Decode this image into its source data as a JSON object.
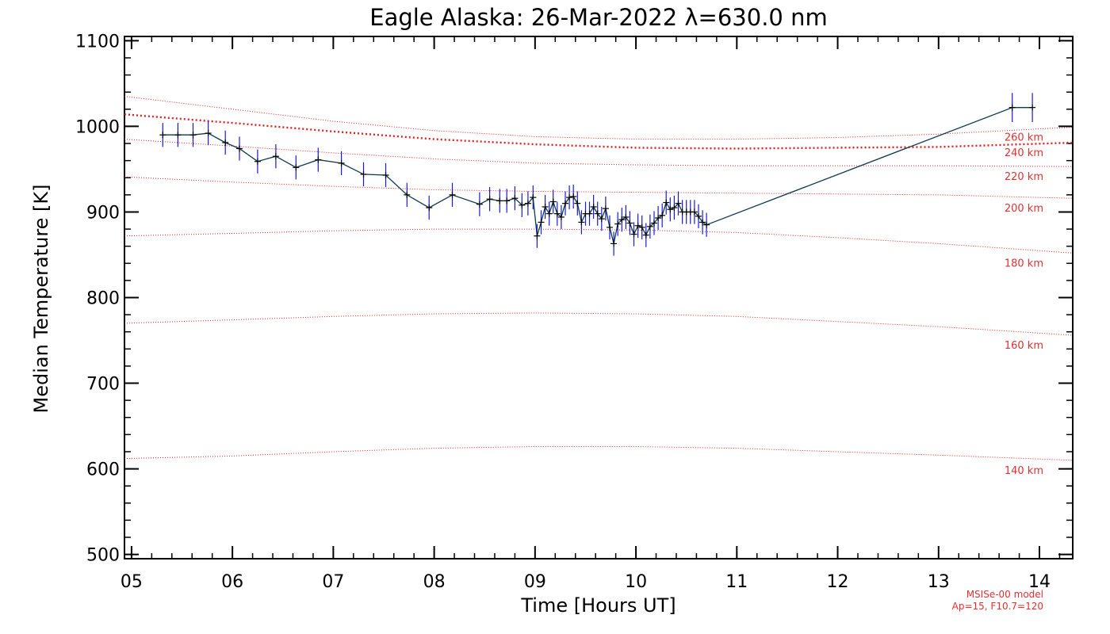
{
  "chart_data": {
    "type": "line",
    "title": "Eagle Alaska: 26-Mar-2022 λ=630.0 nm",
    "xlabel": "Time [Hours UT]",
    "ylabel": "Median Temperature [K]",
    "xlim": [
      4.93,
      14.33
    ],
    "ylim": [
      495,
      1105
    ],
    "x_ticks": [
      5,
      6,
      7,
      8,
      9,
      10,
      11,
      12,
      13,
      14
    ],
    "x_tick_labels": [
      "05",
      "06",
      "07",
      "08",
      "09",
      "10",
      "11",
      "12",
      "13",
      "14"
    ],
    "y_ticks": [
      500,
      600,
      700,
      800,
      900,
      1000,
      1100
    ],
    "y_tick_labels": [
      "500",
      "600",
      "700",
      "800",
      "900",
      "1000",
      "1100"
    ],
    "grid": false,
    "series": [
      {
        "color": "#0d3a4d",
        "marker": "+",
        "error_bar_color": "#1a1ad8",
        "x": [
          5.31,
          5.46,
          5.61,
          5.76,
          5.93,
          6.07,
          6.25,
          6.43,
          6.63,
          6.85,
          7.08,
          7.3,
          7.52,
          7.73,
          7.95,
          8.18,
          8.45,
          8.55,
          8.65,
          8.72,
          8.8,
          8.87,
          8.93,
          8.98,
          9.02,
          9.06,
          9.1,
          9.14,
          9.18,
          9.22,
          9.26,
          9.3,
          9.34,
          9.38,
          9.42,
          9.46,
          9.5,
          9.54,
          9.58,
          9.62,
          9.66,
          9.7,
          9.74,
          9.78,
          9.82,
          9.86,
          9.9,
          9.94,
          9.98,
          10.02,
          10.06,
          10.1,
          10.14,
          10.18,
          10.22,
          10.26,
          10.3,
          10.34,
          10.38,
          10.42,
          10.46,
          10.5,
          10.54,
          10.58,
          10.62,
          10.66,
          10.7,
          13.73,
          13.93
        ],
        "y": [
          990,
          990,
          990,
          992,
          981,
          974,
          959,
          965,
          952,
          961,
          957,
          944,
          943,
          920,
          905,
          920,
          909,
          915,
          913,
          913,
          916,
          908,
          910,
          917,
          872,
          888,
          906,
          898,
          912,
          898,
          894,
          910,
          917,
          918,
          910,
          888,
          898,
          898,
          906,
          898,
          892,
          904,
          882,
          863,
          886,
          891,
          894,
          887,
          874,
          884,
          882,
          873,
          883,
          887,
          893,
          896,
          911,
          903,
          905,
          910,
          900,
          900,
          900,
          900,
          895,
          888,
          885,
          1022,
          1022
        ],
        "error": [
          14,
          14,
          14,
          14,
          14,
          14,
          14,
          14,
          14,
          14,
          14,
          14,
          14,
          14,
          14,
          14,
          14,
          14,
          14,
          14,
          14,
          14,
          14,
          14,
          14,
          14,
          14,
          14,
          14,
          14,
          14,
          14,
          14,
          14,
          14,
          14,
          14,
          14,
          14,
          14,
          14,
          14,
          14,
          14,
          14,
          14,
          14,
          14,
          14,
          14,
          14,
          14,
          14,
          14,
          14,
          14,
          14,
          14,
          14,
          14,
          14,
          14,
          14,
          14,
          14,
          14,
          14,
          17,
          17
        ]
      }
    ],
    "model_curves": [
      {
        "label": "140 km",
        "x": [
          4.93,
          6,
          7,
          8,
          9,
          10,
          11,
          12,
          13,
          14.33
        ],
        "y": [
          612,
          615,
          620,
          624,
          626,
          626,
          624,
          620,
          616,
          610
        ]
      },
      {
        "label": "160 km",
        "x": [
          4.93,
          6,
          7,
          8,
          9,
          10,
          11,
          12,
          13,
          14.33
        ],
        "y": [
          770,
          774,
          778,
          781,
          782,
          781,
          778,
          772,
          766,
          756
        ]
      },
      {
        "label": "180 km",
        "x": [
          4.93,
          6,
          7,
          8,
          9,
          10,
          11,
          12,
          13,
          14.33
        ],
        "y": [
          872,
          875,
          878,
          880,
          880,
          879,
          876,
          870,
          863,
          852
        ]
      },
      {
        "label": "200 km",
        "x": [
          4.93,
          6,
          7,
          8,
          9,
          10,
          11,
          12,
          13,
          14.33
        ],
        "y": [
          941,
          935,
          930,
          926,
          924,
          923,
          922,
          921,
          920,
          916
        ]
      },
      {
        "label": "220 km",
        "x": [
          4.93,
          6,
          7,
          8,
          9,
          10,
          11,
          12,
          13,
          14.33
        ],
        "y": [
          985,
          977,
          969,
          962,
          957,
          955,
          954,
          954,
          954,
          953
        ]
      },
      {
        "label": "240 km",
        "x": [
          4.93,
          6,
          7,
          8,
          9,
          10,
          11,
          12,
          13,
          14.33
        ],
        "y": [
          1014,
          1004,
          994,
          985,
          979,
          975,
          974,
          975,
          976,
          981
        ],
        "emphasis": true
      },
      {
        "label": "260 km",
        "x": [
          4.93,
          6,
          7,
          8,
          9,
          10,
          11,
          12,
          13,
          14.33
        ],
        "y": [
          1035,
          1020,
          1006,
          995,
          988,
          985,
          985,
          987,
          991,
          999
        ]
      }
    ],
    "model_note": [
      "MSISe-00 model",
      "Ap=15, F10.7=120"
    ]
  }
}
